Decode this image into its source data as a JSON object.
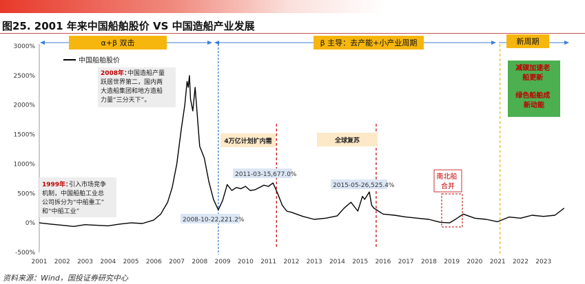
{
  "figure_title": "图25. 2001 年来中国船舶股价 VS 中国造船产业发展",
  "source": "资料来源：Wind，国投证券研究中心",
  "colors": {
    "accent_red": "#c00000",
    "line": "#000000",
    "phase_box": "#f6b60e",
    "green_box": "#4caf50",
    "blue_arrow": "#3b7dd8",
    "title_bar": "#e8392a"
  },
  "phases": [
    {
      "label": "α+β 双击"
    },
    {
      "label": "β 主导：去产能+小产业周期"
    },
    {
      "label": "新周期"
    }
  ],
  "green_box": {
    "lines": [
      "减碳加速老",
      "船更新",
      "",
      "绿色船舶成",
      "新动能"
    ]
  },
  "legend_label": "中国船舶股价",
  "annotations": {
    "a2008": {
      "year": "2008年：",
      "lines": [
        "中国造船产量",
        "跃居世界第二，国内两",
        "大造船集团和地方造船",
        "力量“三分天下”。"
      ]
    },
    "a1999": {
      "year": "1999年：",
      "lines": [
        "引入市场竞争",
        "机制，中国船舶工业总",
        "公司拆分为“中船重工”",
        "和“中船工业”"
      ]
    },
    "stimulus": "4万亿计划扩内需",
    "recovery": "全球复苏",
    "merger": [
      "南北船",
      "合并"
    ]
  },
  "point_labels": [
    "2011-03-15,677.0%",
    "2015-05-26,525.4%",
    "2008-10-22,221.2%"
  ],
  "chart_data": {
    "type": "line",
    "y_ticks": [
      "3000%",
      "2500%",
      "2000%",
      "1500%",
      "1000%",
      "500%",
      "0%",
      "-500%"
    ],
    "x_ticks": [
      "2001",
      "2002",
      "2003",
      "2004",
      "2005",
      "2006",
      "2007",
      "2008",
      "2009",
      "2010",
      "2011",
      "2012",
      "2013",
      "2014",
      "2015",
      "2016",
      "2017",
      "2018",
      "2019",
      "2020",
      "2021",
      "2022",
      "2023"
    ],
    "ylim": [
      -500,
      3000
    ],
    "xlim": [
      2001.0,
      2024.0
    ],
    "series": [
      {
        "name": "中国船舶股价",
        "x": [
          2001.0,
          2001.5,
          2002.0,
          2002.5,
          2003.0,
          2003.5,
          2004.0,
          2004.5,
          2005.0,
          2005.5,
          2006.0,
          2006.3,
          2006.6,
          2006.8,
          2007.0,
          2007.2,
          2007.35,
          2007.45,
          2007.5,
          2007.55,
          2007.6,
          2007.7,
          2007.8,
          2007.9,
          2008.0,
          2008.2,
          2008.4,
          2008.6,
          2008.81,
          2009.0,
          2009.2,
          2009.4,
          2009.6,
          2009.8,
          2010.0,
          2010.2,
          2010.4,
          2010.6,
          2010.8,
          2011.0,
          2011.2,
          2011.4,
          2011.6,
          2011.8,
          2012.0,
          2012.5,
          2013.0,
          2013.5,
          2014.0,
          2014.3,
          2014.6,
          2014.9,
          2015.1,
          2015.2,
          2015.4,
          2015.5,
          2015.6,
          2015.8,
          2016.0,
          2016.5,
          2017.0,
          2017.5,
          2018.0,
          2018.5,
          2018.9,
          2019.2,
          2019.5,
          2020.0,
          2020.5,
          2021.0,
          2021.5,
          2022.0,
          2022.5,
          2023.0,
          2023.5,
          2023.9
        ],
        "y": [
          0,
          -20,
          -40,
          -60,
          -30,
          -40,
          -50,
          -20,
          0,
          -10,
          50,
          150,
          350,
          600,
          1000,
          1600,
          2000,
          2400,
          2300,
          2500,
          2100,
          1900,
          2300,
          1800,
          1300,
          1100,
          700,
          400,
          221,
          380,
          650,
          550,
          600,
          580,
          620,
          550,
          560,
          600,
          640,
          620,
          677,
          500,
          300,
          200,
          180,
          110,
          60,
          80,
          120,
          250,
          350,
          200,
          450,
          400,
          525,
          300,
          250,
          200,
          150,
          130,
          100,
          80,
          60,
          10,
          0,
          70,
          150,
          80,
          60,
          20,
          100,
          80,
          130,
          110,
          130,
          250
        ]
      }
    ],
    "vlines": [
      {
        "x": 2008.81,
        "style": "blue-dashed"
      },
      {
        "x": 2011.35,
        "style": "red-dashed"
      },
      {
        "x": 2015.7,
        "style": "red-dashed"
      },
      {
        "x": 2021.1,
        "style": "yellow-dashed"
      }
    ],
    "grid": false,
    "legend": "top-left"
  }
}
